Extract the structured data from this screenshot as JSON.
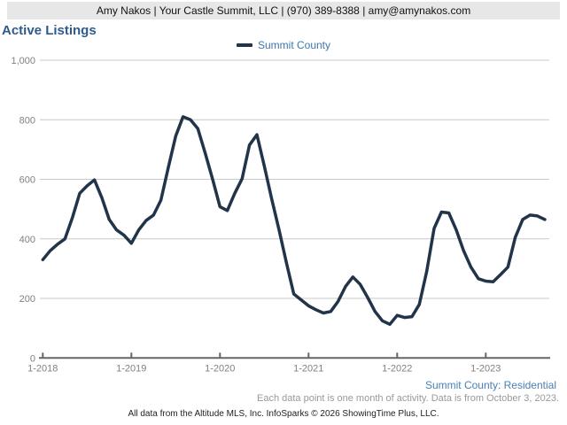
{
  "header": {
    "contact_line": "Amy Nakos | Your Castle Summit, LLC | (970) 389-8388 | amy@amynakos.com"
  },
  "title": "Active Listings",
  "legend": {
    "label": "Summit County"
  },
  "footer": {
    "series_note": "Summit County: Residential",
    "data_note": "Each data point is one month of activity. Data is from October 3, 2023.",
    "attribution": "All data from the Altitude MLS, Inc. InfoSparks © 2026 ShowingTime Plus, LLC."
  },
  "colors": {
    "line": "#22344a",
    "title_blue": "#2e5c8a",
    "legend_blue": "#3e76ab",
    "footer_blue": "#4a80b5",
    "axis_text": "#808080",
    "gridline": "#c9c9c9",
    "axis_line": "#666666",
    "header_bg": "#e7e7e7"
  },
  "chart_data": {
    "type": "line",
    "title": "Active Listings",
    "subtitle": "Summit County: Residential",
    "x_unit": "month",
    "x_start": "2018-01",
    "x_end": "2023-09",
    "categories": [
      "1-2018",
      "2-2018",
      "3-2018",
      "4-2018",
      "5-2018",
      "6-2018",
      "7-2018",
      "8-2018",
      "9-2018",
      "10-2018",
      "11-2018",
      "12-2018",
      "1-2019",
      "2-2019",
      "3-2019",
      "4-2019",
      "5-2019",
      "6-2019",
      "7-2019",
      "8-2019",
      "9-2019",
      "10-2019",
      "11-2019",
      "12-2019",
      "1-2020",
      "2-2020",
      "3-2020",
      "4-2020",
      "5-2020",
      "6-2020",
      "7-2020",
      "8-2020",
      "9-2020",
      "10-2020",
      "11-2020",
      "12-2020",
      "1-2021",
      "2-2021",
      "3-2021",
      "4-2021",
      "5-2021",
      "6-2021",
      "7-2021",
      "8-2021",
      "9-2021",
      "10-2021",
      "11-2021",
      "12-2021",
      "1-2022",
      "2-2022",
      "3-2022",
      "4-2022",
      "5-2022",
      "6-2022",
      "7-2022",
      "8-2022",
      "9-2022",
      "10-2022",
      "11-2022",
      "12-2022",
      "1-2023",
      "2-2023",
      "3-2023",
      "4-2023",
      "5-2023",
      "6-2023",
      "7-2023",
      "8-2023",
      "9-2023"
    ],
    "series": [
      {
        "name": "Summit County",
        "values": [
          330,
          360,
          382,
          400,
          470,
          553,
          578,
          598,
          538,
          465,
          430,
          412,
          385,
          430,
          462,
          480,
          530,
          640,
          745,
          810,
          800,
          770,
          688,
          600,
          508,
          495,
          553,
          602,
          715,
          750,
          645,
          535,
          430,
          320,
          215,
          195,
          175,
          162,
          151,
          156,
          190,
          240,
          272,
          247,
          203,
          156,
          125,
          113,
          143,
          136,
          139,
          180,
          290,
          435,
          490,
          487,
          430,
          360,
          305,
          266,
          258,
          256,
          280,
          305,
          405,
          465,
          480,
          477,
          465
        ]
      }
    ],
    "ylim": [
      0,
      1000
    ],
    "y_ticks": [
      0,
      200,
      400,
      600,
      800,
      1000
    ],
    "y_tick_labels": [
      "0",
      "200",
      "400",
      "600",
      "800",
      "1,000"
    ],
    "x_tick_labels": [
      "1-2018",
      "1-2019",
      "1-2020",
      "1-2021",
      "1-2022",
      "1-2023"
    ],
    "x_tick_month_indices": [
      0,
      12,
      24,
      36,
      48,
      60
    ],
    "grid": "horizontal",
    "legend_position": "top-center"
  }
}
